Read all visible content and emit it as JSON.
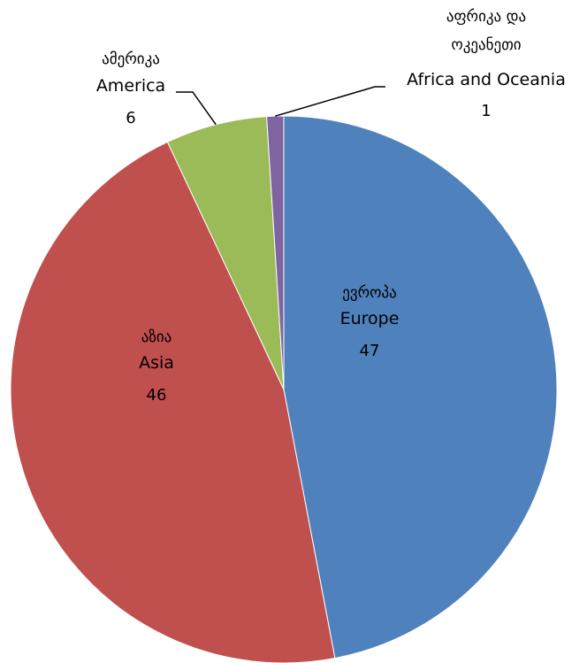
{
  "chart_data": {
    "type": "pie",
    "start_angle_deg": 0,
    "direction": "clockwise",
    "legend": "none",
    "slices": [
      {
        "label_ka": "ევროპა",
        "label": "Europe",
        "value": 47,
        "color": "#4f81bd"
      },
      {
        "label_ka": "აზია",
        "label": "Asia",
        "value": 46,
        "color": "#c0504d"
      },
      {
        "label_ka": "ამერიკა",
        "label": "America",
        "value": 6,
        "color": "#9bbb59"
      },
      {
        "label_ka_lines": [
          "აფრიკა და",
          "ოკეანეთი"
        ],
        "label": "Africa and Oceania",
        "value": 1,
        "color": "#8064a2"
      }
    ]
  }
}
